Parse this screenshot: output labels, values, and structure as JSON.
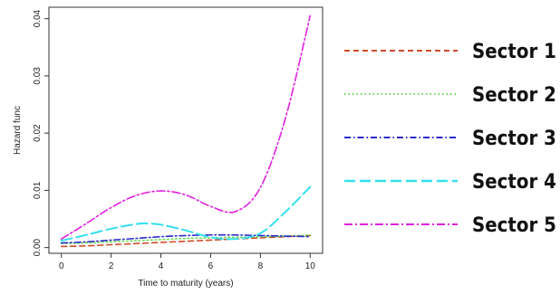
{
  "chart_data": {
    "type": "line",
    "title": "",
    "xlabel": "Time to maturity (years)",
    "ylabel": "Hazard func",
    "xlim": [
      -0.5,
      10.5
    ],
    "ylim": [
      -0.001,
      0.042
    ],
    "xticks": [
      0,
      2,
      4,
      6,
      8,
      10
    ],
    "yticks": [
      0.0,
      0.01,
      0.02,
      0.03,
      0.04
    ],
    "ytick_labels": [
      "0.00",
      "0.01",
      "0.02",
      "0.03",
      "0.04"
    ],
    "grid": false,
    "legend_position": "right",
    "series": [
      {
        "name": "Sector 1",
        "color": "#d04a28",
        "dash": "dashed",
        "x": [
          0,
          1,
          2,
          3,
          4,
          5,
          6,
          7,
          8,
          9,
          10
        ],
        "y": [
          0.0002,
          0.0003,
          0.0005,
          0.0007,
          0.0009,
          0.0011,
          0.0013,
          0.0015,
          0.0017,
          0.0019,
          0.0021
        ]
      },
      {
        "name": "Sector 2",
        "color": "#66dd55",
        "dash": "dotted",
        "x": [
          0,
          1,
          2,
          3,
          4,
          5,
          6,
          7,
          8,
          9,
          10
        ],
        "y": [
          0.0007,
          0.0008,
          0.001,
          0.0012,
          0.0014,
          0.0016,
          0.0017,
          0.0018,
          0.0019,
          0.002,
          0.0022
        ]
      },
      {
        "name": "Sector 3",
        "color": "#2a2acc",
        "dash": "dashdot",
        "x": [
          0,
          1,
          2,
          3,
          4,
          5,
          6,
          7,
          8,
          9,
          10
        ],
        "y": [
          0.0008,
          0.001,
          0.0013,
          0.0016,
          0.0019,
          0.0021,
          0.0022,
          0.0022,
          0.0021,
          0.002,
          0.0019
        ]
      },
      {
        "name": "Sector 4",
        "color": "#33e0f0",
        "dash": "longdash",
        "x": [
          0,
          1,
          2,
          3,
          3.5,
          4,
          5,
          6,
          7,
          8,
          9,
          10
        ],
        "y": [
          0.0012,
          0.0022,
          0.0033,
          0.0041,
          0.0042,
          0.004,
          0.003,
          0.0018,
          0.0015,
          0.0025,
          0.0062,
          0.0106
        ]
      },
      {
        "name": "Sector 5",
        "color": "#e020e0",
        "dash": "twodash",
        "x": [
          0,
          1,
          2,
          3,
          4,
          5,
          6,
          7,
          8,
          9,
          10
        ],
        "y": [
          0.0015,
          0.0042,
          0.007,
          0.0091,
          0.0099,
          0.0092,
          0.0072,
          0.0063,
          0.0105,
          0.0225,
          0.0405
        ]
      }
    ]
  }
}
